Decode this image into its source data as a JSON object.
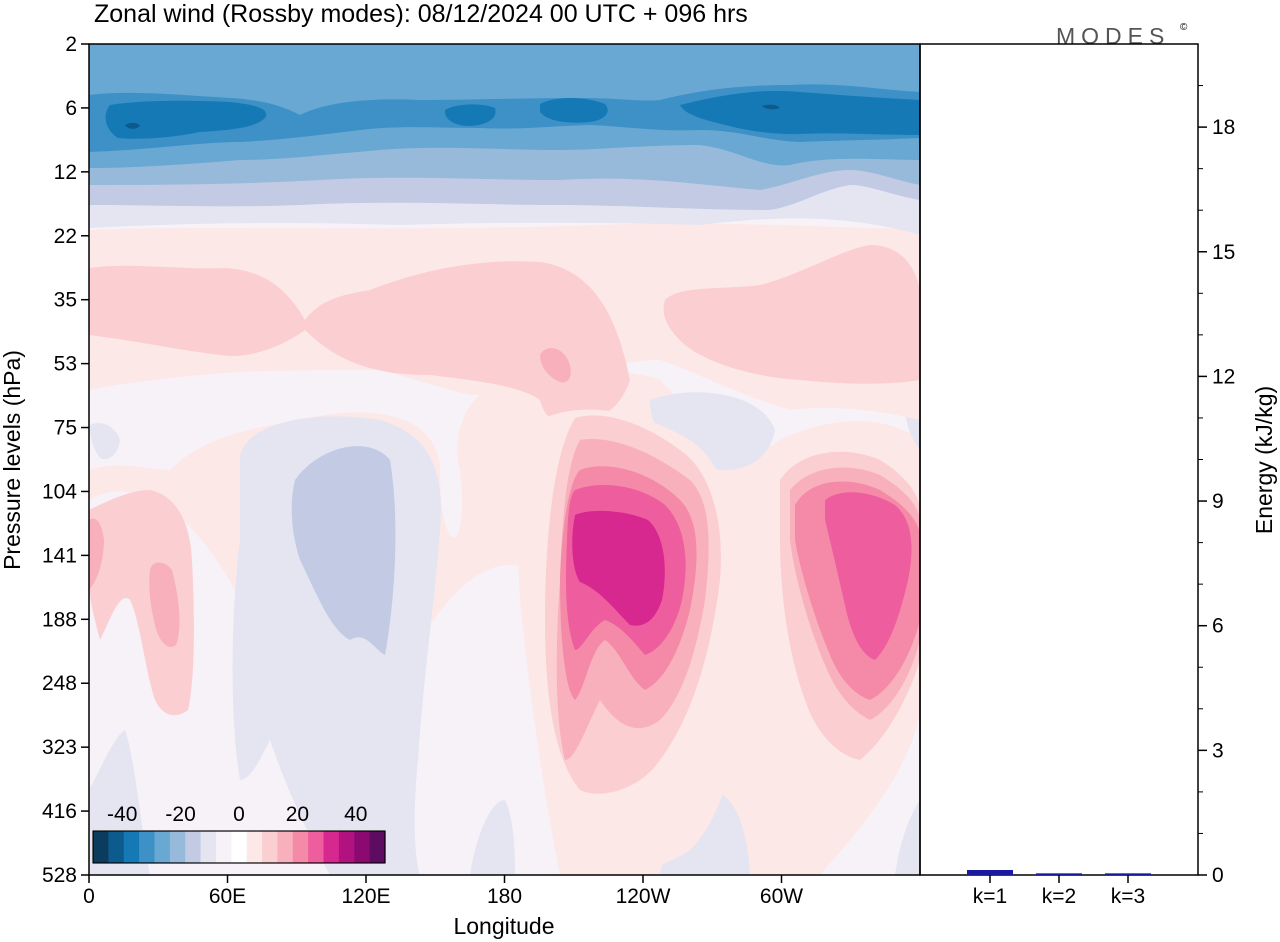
{
  "title": "Zonal wind (Rossby modes):  08/12/2024  00 UTC  + 096 hrs",
  "logo": "MODES",
  "logo_mark": "©",
  "chart_data": [
    {
      "type": "heatmap",
      "xlabel": "Longitude",
      "ylabel": "Pressure levels (hPa)",
      "x_ticks": [
        {
          "lon": 0,
          "label": "0"
        },
        {
          "lon": 60,
          "label": "60E"
        },
        {
          "lon": 120,
          "label": "120E"
        },
        {
          "lon": 180,
          "label": "180"
        },
        {
          "lon": 240,
          "label": "120W"
        },
        {
          "lon": 300,
          "label": "60W"
        }
      ],
      "xlim": [
        0,
        360
      ],
      "y_levels": [
        "2",
        "6",
        "12",
        "22",
        "35",
        "53",
        "75",
        "104",
        "141",
        "188",
        "248",
        "323",
        "416",
        "528"
      ],
      "color_scale": {
        "tick_labels": [
          {
            "value": -40,
            "label": "-40"
          },
          {
            "value": -20,
            "label": "-20"
          },
          {
            "value": 0,
            "label": "0"
          },
          {
            "value": 20,
            "label": "20"
          },
          {
            "value": 40,
            "label": "40"
          }
        ],
        "range": [
          -50,
          50
        ],
        "colors": [
          "#0b3c5d",
          "#0d5a8c",
          "#1579b5",
          "#3d91c7",
          "#68a8d2",
          "#97b9da",
          "#c2cbe3",
          "#e4e5f1",
          "#f6f2f8",
          "#ffffff",
          "#fde8e8",
          "#fbcfd1",
          "#f8b1bc",
          "#f48aa8",
          "#ee5d9d",
          "#d6288f",
          "#b2127f",
          "#8a0a72",
          "#5e0b62"
        ]
      },
      "structure_notes_levels": {
        "easterly_core_level_hPa": 6,
        "westerly_jet_levels_hPa": [
          104,
          188
        ]
      },
      "features": [
        {
          "level_hPa": [
            2,
            14
          ],
          "lon": [
            0,
            360
          ],
          "value_min": -35
        },
        {
          "level_hPa": [
            104,
            200
          ],
          "lon": [
            205,
            255
          ],
          "value_max": 35
        },
        {
          "level_hPa": [
            104,
            200
          ],
          "lon": [
            300,
            350
          ],
          "value_max": 30
        },
        {
          "level_hPa": [
            75,
            200
          ],
          "lon": [
            60,
            140
          ],
          "value_min": -8
        }
      ]
    },
    {
      "type": "bar",
      "ylabel": "Energy (kJ/kg)",
      "categories": [
        "k=1",
        "k=2",
        "k=3"
      ],
      "values": [
        0.12,
        0.04,
        0.04
      ],
      "ylim": [
        0,
        20
      ],
      "y_ticks": [
        0,
        3,
        6,
        9,
        12,
        15,
        18
      ],
      "bar_color": "#1a1a9e"
    }
  ]
}
